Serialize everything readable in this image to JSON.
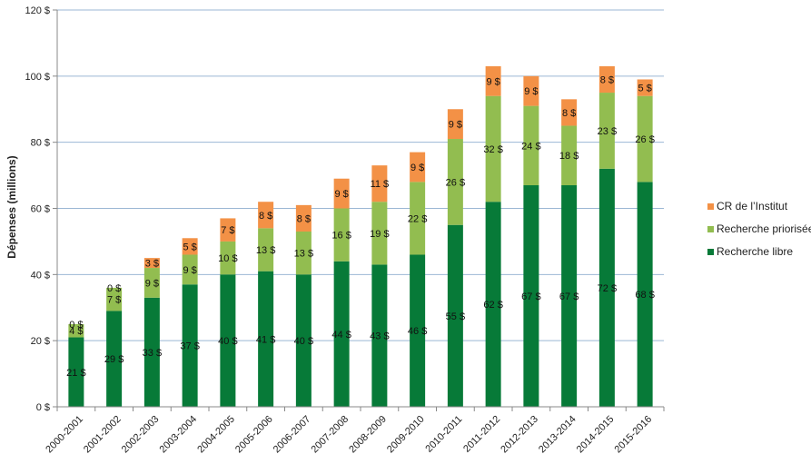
{
  "chart_data": {
    "type": "bar",
    "stacked": true,
    "xlabel": "",
    "ylabel": "Dépenses (millions)",
    "ylim": [
      0,
      120
    ],
    "ytick_step": 20,
    "ytick_suffix": " $",
    "grid": true,
    "legend_position": "right",
    "categories": [
      "2000-2001",
      "2001-2002",
      "2002-2003",
      "2003-2004",
      "2004-2005",
      "2005-2006",
      "2006-2007",
      "2007-2008",
      "2008-2009",
      "2009-2010",
      "2010-2011",
      "2011-2012",
      "2012-2013",
      "2013-2014",
      "2014-2015",
      "2015-2016"
    ],
    "series": [
      {
        "name": "Recherche libre",
        "color": "#077a38",
        "values": [
          21,
          29,
          33,
          37,
          40,
          41,
          40,
          44,
          43,
          46,
          55,
          62,
          67,
          67,
          72,
          68
        ]
      },
      {
        "name": "Recherche priorisée",
        "color": "#92bd50",
        "values": [
          4,
          7,
          9,
          9,
          10,
          13,
          13,
          16,
          19,
          22,
          26,
          32,
          24,
          18,
          23,
          26
        ]
      },
      {
        "name": "CR de l’Institut",
        "color": "#f39146",
        "values": [
          0,
          0,
          3,
          5,
          7,
          8,
          8,
          9,
          11,
          9,
          9,
          9,
          9,
          8,
          8,
          5
        ]
      }
    ],
    "legend_order": [
      "CR de l’Institut",
      "Recherche priorisée",
      "Recherche libre"
    ]
  }
}
